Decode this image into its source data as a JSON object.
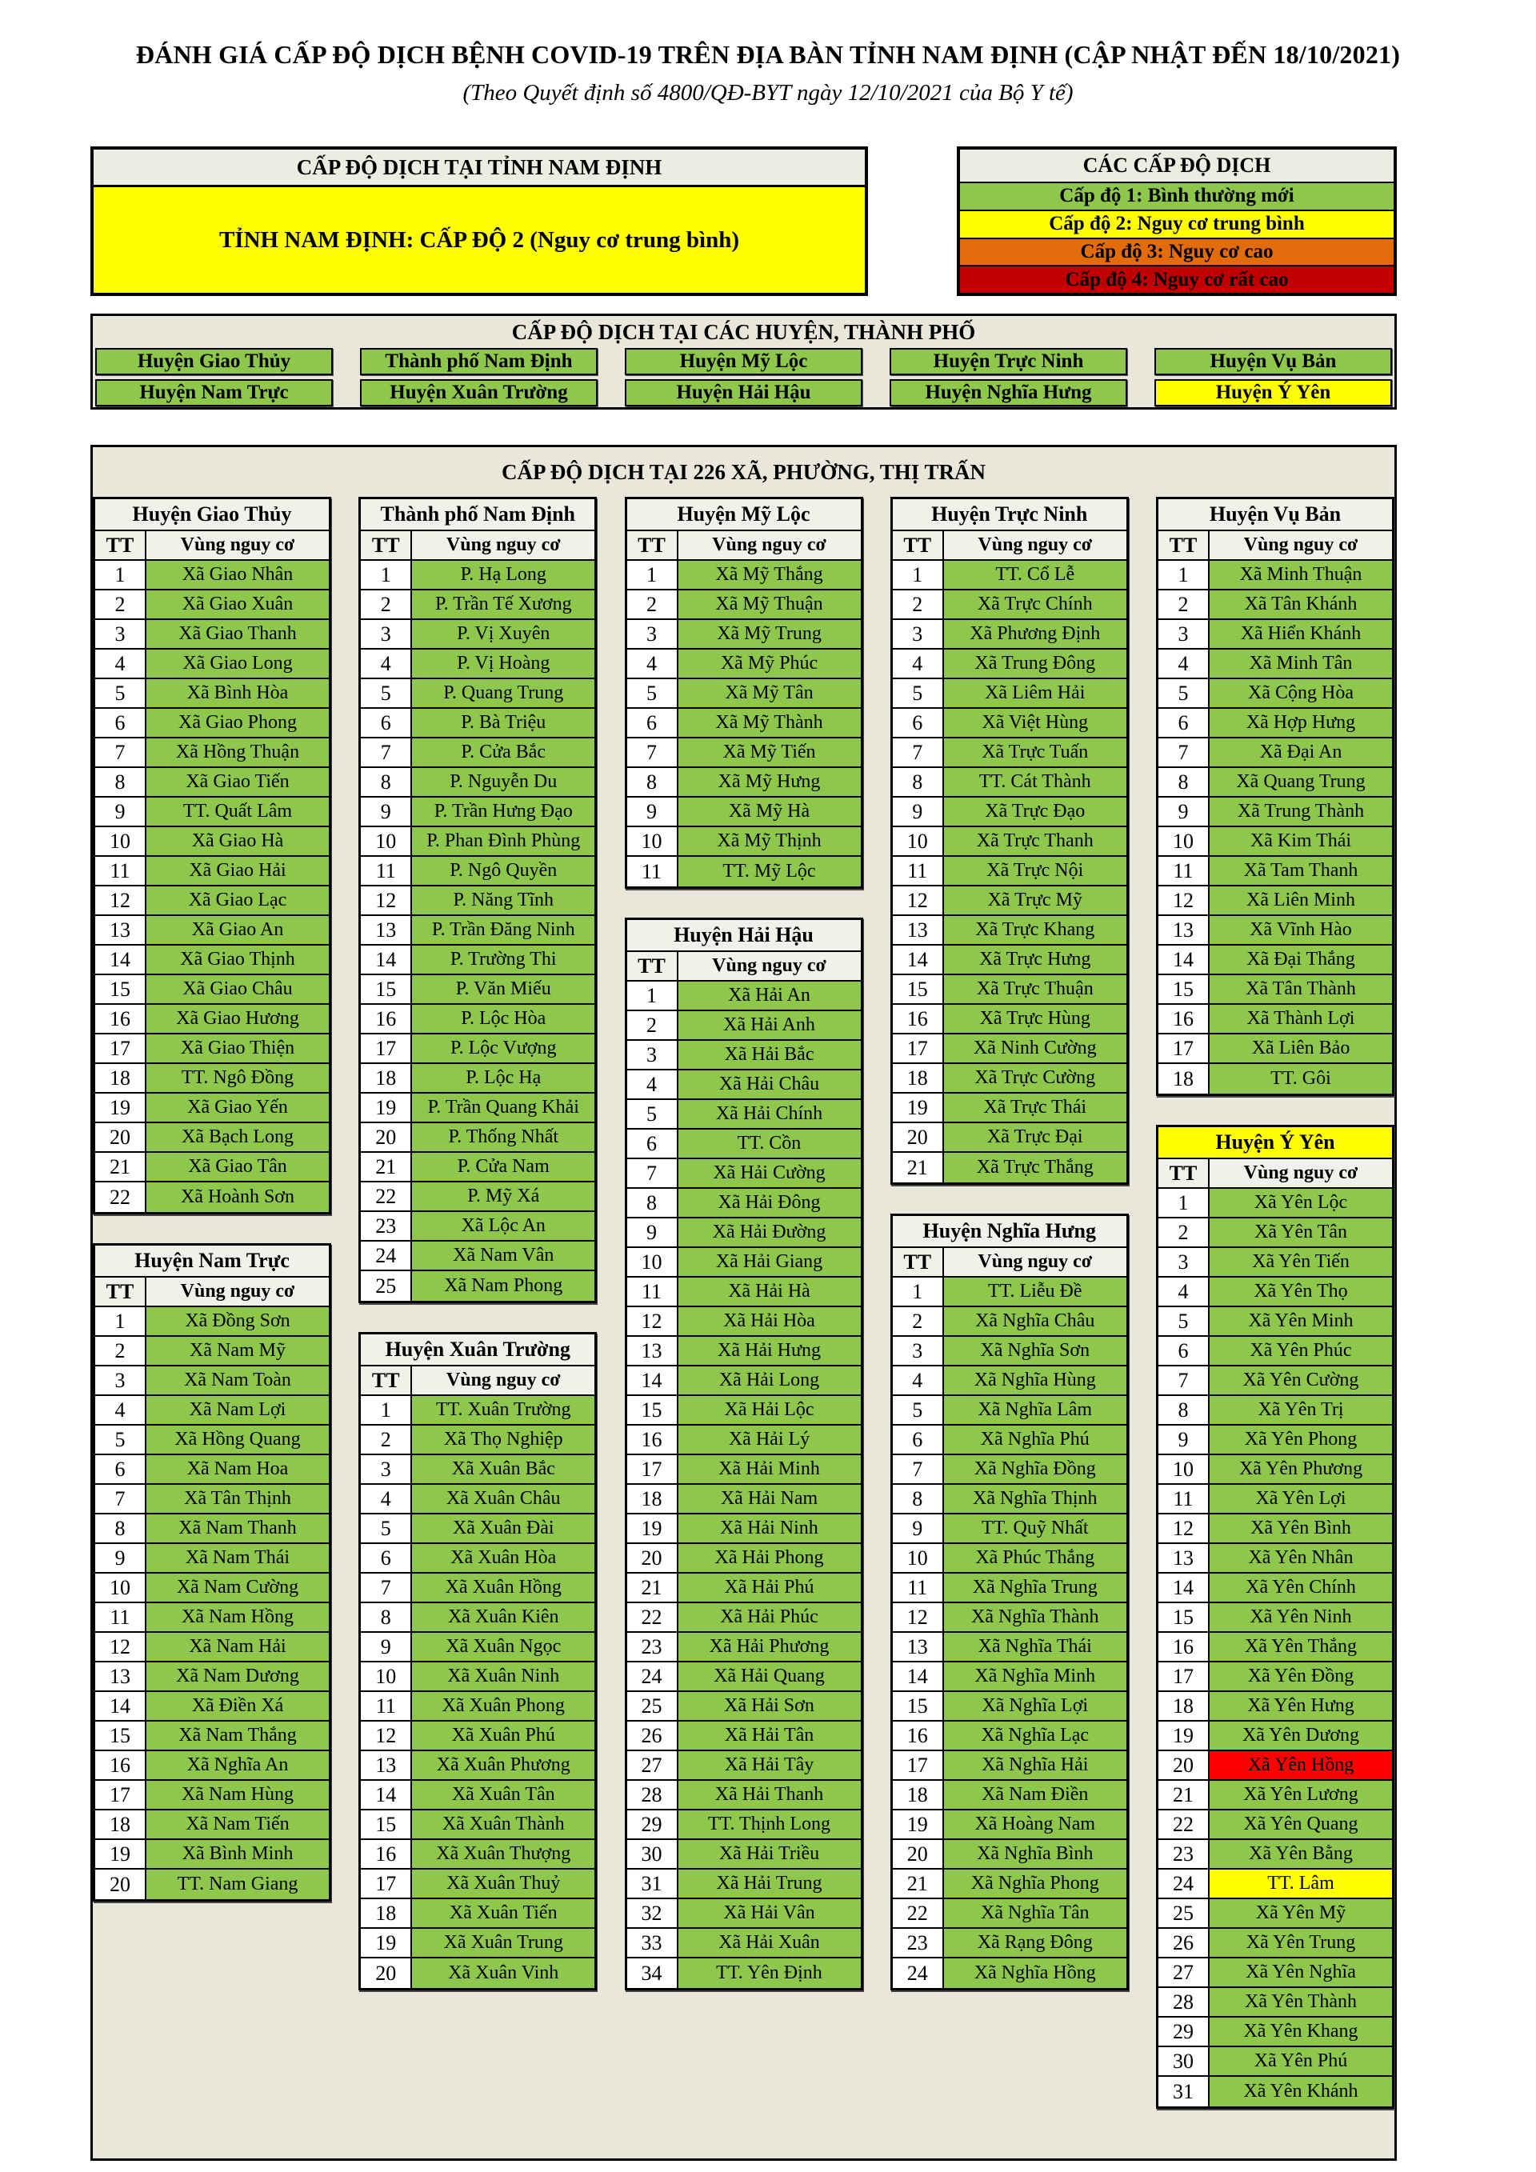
{
  "page": {
    "title": "ĐÁNH GIÁ CẤP ĐỘ DỊCH BỆNH COVID-19 TRÊN ĐỊA BÀN TỈNH NAM ĐỊNH (CẬP NHẬT ĐẾN 18/10/2021)",
    "subtitle": "(Theo Quyết định số 4800/QĐ-BYT ngày 12/10/2021 của Bộ Y tế)"
  },
  "colors": {
    "levels": {
      "1": "#8DC74B",
      "2": "#FFFF00",
      "3": "#E26B0A",
      "4": "#FF0000"
    },
    "legend_level4": "#C00000",
    "section_bg": "#E9E7DA"
  },
  "province_box": {
    "header": "CẤP ĐỘ DỊCH TẠI TỈNH NAM ĐỊNH",
    "value": "TỈNH NAM ĐỊNH: CẤP ĐỘ 2 (Nguy cơ trung bình)",
    "level": 2
  },
  "legend": {
    "header": "CÁC CẤP ĐỘ DỊCH",
    "levels": [
      {
        "label": "Cấp độ 1: Bình thường mới",
        "color": "#8DC74B"
      },
      {
        "label": "Cấp độ 2: Nguy cơ trung bình",
        "color": "#FFFF00"
      },
      {
        "label": "Cấp độ 3: Nguy cơ cao",
        "color": "#E26B0A"
      },
      {
        "label": "Cấp độ 4: Nguy cơ rất cao",
        "color": "#C00000"
      }
    ]
  },
  "districts_section": {
    "header": "CẤP ĐỘ DỊCH TẠI CÁC HUYỆN, THÀNH PHỐ",
    "rows": [
      [
        {
          "name": "Huyện Giao Thủy",
          "level": 1
        },
        {
          "name": "Thành phố Nam Định",
          "level": 1
        },
        {
          "name": "Huyện Mỹ Lộc",
          "level": 1
        },
        {
          "name": "Huyện Trực Ninh",
          "level": 1
        },
        {
          "name": "Huyện Vụ Bản",
          "level": 1
        }
      ],
      [
        {
          "name": "Huyện Nam Trực",
          "level": 1
        },
        {
          "name": "Huyện Xuân Trường",
          "level": 1
        },
        {
          "name": "Huyện Hải Hậu",
          "level": 1
        },
        {
          "name": "Huyện Nghĩa Hưng",
          "level": 1
        },
        {
          "name": "Huyện Ý Yên",
          "level": 2
        }
      ]
    ]
  },
  "communes_section": {
    "header": "CẤP ĐỘ DỊCH TẠI 226 XÃ, PHƯỜNG, THỊ TRẤN",
    "table_header": {
      "tt": "TT",
      "risk": "Vùng nguy cơ"
    },
    "columns": [
      [
        {
          "name": "Huyện Giao Thủy",
          "communes": [
            "Xã Giao Nhân",
            "Xã Giao Xuân",
            "Xã Giao Thanh",
            "Xã Giao Long",
            "Xã Bình Hòa",
            "Xã Giao Phong",
            "Xã Hồng Thuận",
            "Xã Giao Tiến",
            "TT. Quất Lâm",
            "Xã Giao Hà",
            "Xã Giao Hải",
            "Xã Giao Lạc",
            "Xã Giao An",
            "Xã Giao Thịnh",
            "Xã Giao Châu",
            "Xã Giao Hương",
            "Xã Giao Thiện",
            "TT. Ngô Đồng",
            "Xã Giao Yến",
            "Xã Bạch Long",
            "Xã Giao Tân",
            "Xã Hoành Sơn"
          ]
        },
        {
          "name": "Huyện Nam Trực",
          "communes": [
            "Xã Đồng Sơn",
            "Xã Nam Mỹ",
            "Xã Nam Toàn",
            "Xã Nam Lợi",
            "Xã Hồng Quang",
            "Xã Nam Hoa",
            "Xã Tân Thịnh",
            "Xã Nam Thanh",
            "Xã Nam Thái",
            "Xã Nam Cường",
            "Xã Nam Hồng",
            "Xã Nam Hải",
            "Xã Nam Dương",
            "Xã Điền Xá",
            "Xã Nam Thắng",
            "Xã Nghĩa An",
            "Xã Nam Hùng",
            "Xã Nam Tiến",
            "Xã Bình Minh",
            "TT. Nam Giang"
          ]
        }
      ],
      [
        {
          "name": "Thành phố Nam Định",
          "communes": [
            "P.  Hạ Long",
            "P.  Trần Tế Xương",
            "P.  Vị Xuyên",
            "P.  Vị Hoàng",
            "P.  Quang Trung",
            "P.  Bà Triệu",
            "P.  Cửa Bắc",
            "P.  Nguyễn Du",
            "P.  Trần Hưng Đạo",
            "P.  Phan Đình Phùng",
            "P.  Ngô Quyền",
            "P.  Năng Tĩnh",
            "P.  Trần Đăng Ninh",
            "P.  Trường Thi",
            "P.  Văn Miếu",
            "P. Lộc Hòa",
            "P.  Lộc Vượng",
            "P.  Lộc Hạ",
            "P.  Trần Quang Khải",
            "P.  Thống Nhất",
            "P.  Cửa Nam",
            "P. Mỹ Xá",
            "Xã Lộc An",
            "Xã Nam Vân",
            "Xã Nam Phong"
          ]
        },
        {
          "name": "Huyện Xuân Trường",
          "communes": [
            "TT. Xuân Trường",
            "Xã Thọ Nghiệp",
            "Xã Xuân Bắc",
            "Xã Xuân Châu",
            "Xã Xuân Đài",
            "Xã Xuân Hòa",
            "Xã Xuân Hồng",
            "Xã Xuân Kiên",
            "Xã Xuân Ngọc",
            "Xã Xuân Ninh",
            "Xã Xuân Phong",
            "Xã Xuân Phú",
            "Xã Xuân Phương",
            "Xã Xuân Tân",
            "Xã Xuân Thành",
            "Xã Xuân Thượng",
            "Xã Xuân Thuỷ",
            "Xã Xuân Tiến",
            "Xã Xuân Trung",
            "Xã  Xuân Vinh"
          ]
        }
      ],
      [
        {
          "name": "Huyện Mỹ Lộc",
          "communes": [
            "Xã Mỹ Thắng",
            "Xã Mỹ Thuận",
            "Xã Mỹ Trung",
            "Xã Mỹ Phúc",
            "Xã Mỹ Tân",
            "Xã Mỹ Thành",
            "Xã Mỹ Tiến",
            "Xã Mỹ Hưng",
            "Xã Mỹ Hà",
            "Xã Mỹ Thịnh",
            "TT. Mỹ Lộc"
          ]
        },
        {
          "name": "Huyện Hải Hậu",
          "communes": [
            "Xã Hải An",
            "Xã Hải Anh",
            "Xã Hải Bắc",
            "Xã Hải Châu",
            "Xã Hải Chính",
            "TT. Cồn",
            "Xã Hải Cường",
            "Xã Hải Đông",
            "Xã Hải Đường",
            "Xã Hải Giang",
            "Xã Hải Hà",
            "Xã Hải Hòa",
            "Xã Hải Hưng",
            "Xã Hải Long",
            "Xã Hải Lộc",
            "Xã Hải Lý",
            "Xã Hải Minh",
            "Xã Hải Nam",
            "Xã Hải Ninh",
            "Xã Hải Phong",
            "Xã Hải Phú",
            "Xã Hải Phúc",
            "Xã Hải Phương",
            "Xã Hải Quang",
            "Xã Hải Sơn",
            "Xã Hải Tân",
            "Xã Hải Tây",
            "Xã Hải Thanh",
            "TT. Thịnh Long",
            "Xã Hải Triều",
            "Xã Hải Trung",
            "Xã Hải Vân",
            "Xã Hải Xuân",
            "TT. Yên Định"
          ]
        }
      ],
      [
        {
          "name": "Huyện Trực Ninh",
          "communes": [
            "TT. Cổ Lễ",
            "Xã Trực Chính",
            "Xã  Phương Định",
            "Xã Trung Đông",
            "Xã Liêm Hải",
            "Xã Việt Hùng",
            "Xã Trực Tuấn",
            "TT. Cát Thành",
            "Xã Trực Đạo",
            "Xã Trực Thanh",
            "Xã Trực Nội",
            "Xã Trực Mỹ",
            "Xã Trực Khang",
            "Xã Trực Hưng",
            "Xã Trực Thuận",
            "Xã Trực Hùng",
            "Xã Ninh Cường",
            "Xã Trực Cường",
            "Xã Trực Thái",
            "Xã Trực Đại",
            "Xã Trực Thắng"
          ]
        },
        {
          "name": "Huyện Nghĩa Hưng",
          "communes": [
            "TT. Liễu Đề",
            "Xã Nghĩa Châu",
            "Xã Nghĩa Sơn",
            "Xã Nghĩa Hùng",
            "Xã Nghĩa Lâm",
            "Xã Nghĩa Phú",
            "Xã Nghĩa Đồng",
            "Xã Nghĩa Thịnh",
            "TT. Quỹ Nhất",
            "Xã Phúc Thắng",
            "Xã Nghĩa Trung",
            "Xã Nghĩa Thành",
            "Xã Nghĩa Thái",
            "Xã Nghĩa Minh",
            "Xã Nghĩa Lợi",
            "Xã Nghĩa Lạc",
            "Xã Nghĩa Hải",
            "Xã Nam Điền",
            "Xã Hoàng Nam",
            "Xã Nghĩa Bình",
            "Xã Nghĩa Phong",
            "Xã Nghĩa Tân",
            "Xã Rạng Đông",
            "Xã Nghĩa Hồng"
          ]
        }
      ],
      [
        {
          "name": "Huyện Vụ Bản",
          "communes": [
            "Xã Minh Thuận",
            "Xã Tân Khánh",
            "Xã Hiển Khánh",
            "Xã Minh Tân",
            "Xã Cộng Hòa",
            "Xã Hợp Hưng",
            "Xã Đại An",
            "Xã Quang  Trung",
            "Xã Trung Thành",
            "Xã Kim Thái",
            "Xã Tam Thanh",
            "Xã Liên Minh",
            "Xã Vĩnh Hào",
            "Xã Đại Thắng",
            "Xã Tân Thành",
            "Xã Thành Lợi",
            "Xã Liên Bảo",
            "TT. Gôi"
          ]
        },
        {
          "name": "Huyện Ý Yên",
          "header_level": 2,
          "communes": [
            "Xã Yên Lộc",
            "Xã Yên Tân",
            "Xã Yên Tiến",
            "Xã Yên Thọ",
            "Xã Yên Minh",
            "Xã Yên Phúc",
            "Xã Yên Cường",
            "Xã Yên Trị",
            "Xã Yên Phong",
            "Xã Yên Phương",
            "Xã Yên Lợi",
            "Xã Yên Bình",
            "Xã Yên Nhân",
            "Xã Yên Chính",
            "Xã Yên Ninh",
            "Xã Yên Thắng",
            "Xã Yên Đồng",
            "Xã Yên Hưng",
            "Xã Yên Dương",
            {
              "name": "Xã Yên Hồng",
              "level": 4
            },
            "Xã Yên Lương",
            "Xã Yên Quang",
            "Xã Yên Bằng",
            {
              "name": "TT. Lâm",
              "level": 2
            },
            "Xã Yên Mỹ",
            "Xã Yên Trung",
            "Xã Yên Nghĩa",
            "Xã Yên Thành",
            "Xã Yên Khang",
            "Xã Yên Phú",
            "Xã Yên Khánh"
          ]
        }
      ]
    ]
  }
}
